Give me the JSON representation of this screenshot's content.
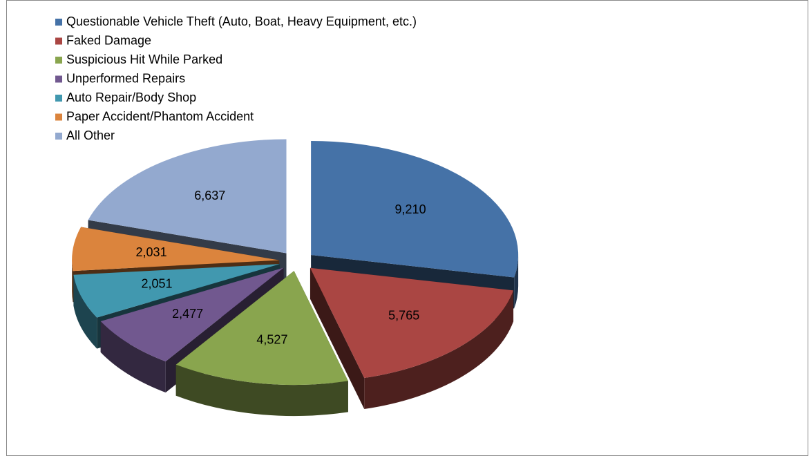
{
  "chart_data": {
    "type": "pie",
    "categories": [
      "Questionable Vehicle Theft (Auto, Boat, Heavy Equipment, etc.)",
      "Faked Damage",
      "Suspicious Hit While Parked",
      "Unperformed Repairs",
      "Auto Repair/Body Shop",
      "Paper Accident/Phantom Accident",
      "All Other"
    ],
    "values": [
      9210,
      5765,
      4527,
      2477,
      2051,
      2031,
      6637
    ],
    "value_labels": [
      "9,210",
      "5,765",
      "4,527",
      "2,477",
      "2,051",
      "2,031",
      "6,637"
    ],
    "colors": [
      "#4572a7",
      "#aa4643",
      "#89a54e",
      "#71588f",
      "#4198af",
      "#db843d",
      "#93a9cf"
    ]
  }
}
